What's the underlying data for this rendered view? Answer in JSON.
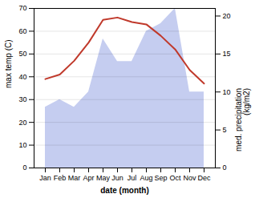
{
  "chart_data": {
    "type": "line",
    "xlabel": "date (month)",
    "ylabel": "max temp (C)",
    "y2label": "med. precipitation\n(kg/m2)",
    "categories": [
      "Jan",
      "Feb",
      "Mar",
      "Apr",
      "May",
      "Jun",
      "Jul",
      "Aug",
      "Sep",
      "Oct",
      "Nov",
      "Dec"
    ],
    "series": [
      {
        "type": "area",
        "axis": "y2",
        "color": "#c5cdf0",
        "values": [
          8,
          9,
          8,
          10,
          17,
          14,
          14,
          18,
          19,
          21,
          10,
          10
        ]
      },
      {
        "type": "line",
        "color": "#c0392b",
        "values": [
          39,
          41,
          47,
          55,
          65,
          66,
          64,
          63,
          58,
          52,
          43,
          37
        ]
      }
    ],
    "ylim": [
      0,
      70
    ],
    "yticks": [
      0,
      10,
      20,
      30,
      40,
      50,
      60,
      70
    ],
    "y2lim": [
      0,
      21
    ],
    "y2ticks": [
      0,
      5,
      10,
      15,
      20
    ],
    "grid": true
  }
}
